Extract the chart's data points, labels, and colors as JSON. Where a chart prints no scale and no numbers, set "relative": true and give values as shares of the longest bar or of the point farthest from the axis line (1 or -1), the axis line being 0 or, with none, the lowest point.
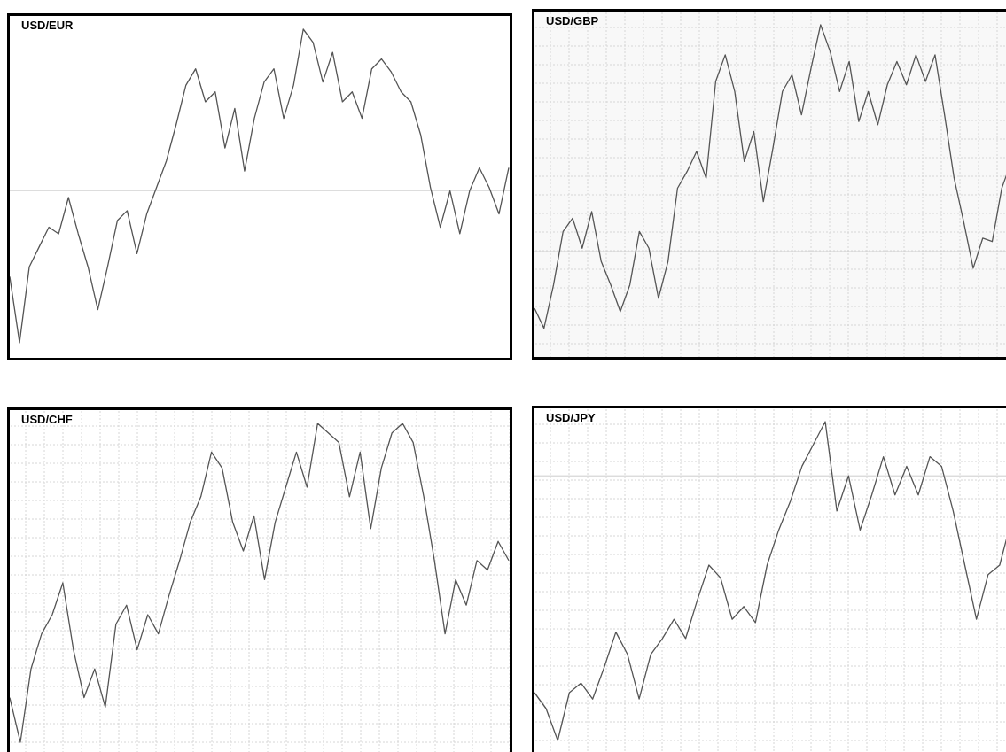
{
  "chart_data": [
    {
      "type": "line",
      "title": "USD/EUR",
      "relative": true,
      "grid": false,
      "categories": [
        null,
        null,
        null,
        null,
        null,
        null,
        null,
        null,
        null,
        null,
        null,
        null,
        null,
        null,
        null,
        null,
        null,
        null,
        null,
        null,
        null,
        null,
        null,
        null,
        null,
        null,
        null,
        null,
        null,
        null,
        null,
        null,
        null,
        null,
        null,
        null,
        null,
        null,
        null,
        null,
        null,
        null,
        null,
        null,
        null,
        null,
        null,
        null,
        null,
        null,
        null,
        null
      ],
      "series": [
        {
          "color": "#555555",
          "values": [
            0.25,
            0.05,
            0.28,
            0.34,
            0.4,
            0.38,
            0.49,
            0.38,
            0.28,
            0.15,
            0.28,
            0.42,
            0.45,
            0.32,
            0.44,
            0.52,
            0.6,
            0.71,
            0.83,
            0.88,
            0.78,
            0.81,
            0.64,
            0.76,
            0.57,
            0.73,
            0.84,
            0.88,
            0.73,
            0.83,
            1,
            0.96,
            0.84,
            0.93,
            0.78,
            0.81,
            0.73,
            0.88,
            0.91,
            0.87,
            0.81,
            0.78,
            0.68,
            0.52,
            0.4,
            0.51,
            0.38,
            0.51,
            0.58,
            0.52,
            0.44,
            0.58
          ]
        }
      ],
      "ref_lines": [
        {
          "axis": "y",
          "value": 0.51,
          "color": "#dddddd"
        }
      ]
    },
    {
      "type": "line",
      "title": "USD/GBP",
      "relative": true,
      "grid": true,
      "categories": [
        null,
        null,
        null,
        null,
        null,
        null,
        null,
        null,
        null,
        null,
        null,
        null,
        null,
        null,
        null,
        null,
        null,
        null,
        null,
        null,
        null,
        null,
        null,
        null,
        null,
        null,
        null,
        null,
        null,
        null,
        null,
        null,
        null,
        null,
        null,
        null,
        null,
        null,
        null,
        null,
        null,
        null,
        null,
        null,
        null,
        null,
        null,
        null,
        null,
        null,
        null
      ],
      "series": [
        {
          "color": "#555555",
          "values": [
            0.15,
            0.09,
            0.22,
            0.38,
            0.42,
            0.33,
            0.44,
            0.29,
            0.22,
            0.14,
            0.22,
            0.38,
            0.33,
            0.18,
            0.29,
            0.51,
            0.56,
            0.62,
            0.54,
            0.83,
            0.91,
            0.8,
            0.59,
            0.68,
            0.47,
            0.63,
            0.8,
            0.85,
            0.73,
            0.87,
            1,
            0.92,
            0.8,
            0.89,
            0.71,
            0.8,
            0.7,
            0.82,
            0.89,
            0.82,
            0.91,
            0.83,
            0.91,
            0.73,
            0.54,
            0.41,
            0.27,
            0.36,
            0.35,
            0.51,
            0.59
          ]
        }
      ],
      "ref_lines": [
        {
          "axis": "y",
          "value": 0.32,
          "color": "#cccccc"
        }
      ]
    },
    {
      "type": "line",
      "title": "USD/CHF",
      "relative": true,
      "grid": true,
      "categories": [
        null,
        null,
        null,
        null,
        null,
        null,
        null,
        null,
        null,
        null,
        null,
        null,
        null,
        null,
        null,
        null,
        null,
        null,
        null,
        null,
        null,
        null,
        null,
        null,
        null,
        null,
        null,
        null,
        null,
        null,
        null,
        null,
        null,
        null,
        null,
        null,
        null,
        null,
        null,
        null,
        null,
        null,
        null,
        null,
        null,
        null,
        null,
        null
      ],
      "series": [
        {
          "color": "#555555",
          "values": [
            0.14,
            0,
            0.23,
            0.34,
            0.4,
            0.5,
            0.29,
            0.14,
            0.23,
            0.11,
            0.37,
            0.43,
            0.29,
            0.4,
            0.34,
            0.46,
            0.57,
            0.69,
            0.77,
            0.91,
            0.86,
            0.69,
            0.6,
            0.71,
            0.51,
            0.69,
            0.8,
            0.91,
            0.8,
            1,
            0.97,
            0.94,
            0.77,
            0.91,
            0.67,
            0.86,
            0.97,
            1,
            0.94,
            0.77,
            0.57,
            0.34,
            0.51,
            0.43,
            0.57,
            0.54,
            0.63,
            0.57
          ]
        }
      ]
    },
    {
      "type": "line",
      "title": "USD/JPY",
      "relative": true,
      "grid": true,
      "categories": [
        null,
        null,
        null,
        null,
        null,
        null,
        null,
        null,
        null,
        null,
        null,
        null,
        null,
        null,
        null,
        null,
        null,
        null,
        null,
        null,
        null,
        null,
        null,
        null,
        null,
        null,
        null,
        null,
        null,
        null,
        null,
        null,
        null,
        null,
        null,
        null,
        null,
        null,
        null,
        null,
        null,
        null
      ],
      "series": [
        {
          "color": "#555555",
          "values": [
            0.15,
            0.1,
            0,
            0.15,
            0.18,
            0.13,
            0.23,
            0.34,
            0.27,
            0.13,
            0.27,
            0.32,
            0.38,
            0.32,
            0.44,
            0.55,
            0.51,
            0.38,
            0.42,
            0.37,
            0.55,
            0.66,
            0.75,
            0.86,
            0.93,
            1,
            0.72,
            0.83,
            0.66,
            0.77,
            0.89,
            0.77,
            0.86,
            0.77,
            0.89,
            0.86,
            0.72,
            0.55,
            0.38,
            0.52,
            0.55,
            0.69
          ]
        }
      ],
      "ref_lines": [
        {
          "axis": "y",
          "value": 0.83,
          "color": "#cccccc"
        }
      ]
    }
  ]
}
